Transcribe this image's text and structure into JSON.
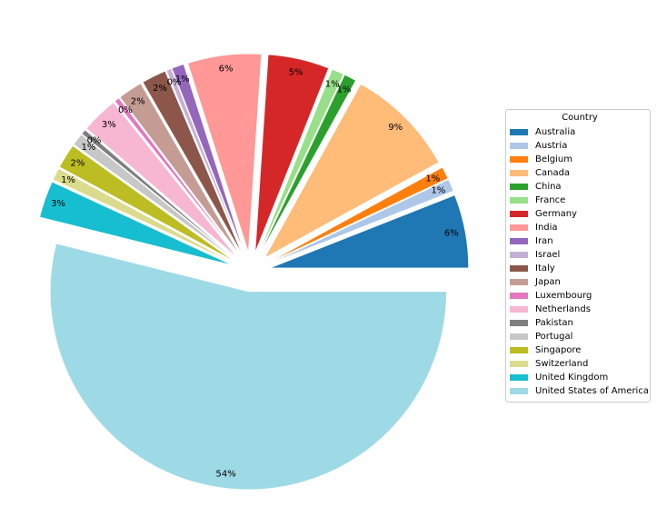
{
  "chart_data": {
    "type": "pie",
    "title": "",
    "legend_title": "Country",
    "legend_position": "right",
    "start_angle_deg": 0,
    "direction": "counterclockwise",
    "exploded": true,
    "slices": [
      {
        "label": "Australia",
        "value": 6,
        "display": "6%",
        "color": "#1f77b4"
      },
      {
        "label": "Austria",
        "value": 1,
        "display": "1%",
        "color": "#aec7e8"
      },
      {
        "label": "Belgium",
        "value": 1,
        "display": "1%",
        "color": "#ff7f0e"
      },
      {
        "label": "Canada",
        "value": 9,
        "display": "9%",
        "color": "#ffbb78"
      },
      {
        "label": "China",
        "value": 1,
        "display": "1%",
        "color": "#2ca02c"
      },
      {
        "label": "France",
        "value": 1,
        "display": "1%",
        "color": "#98df8a"
      },
      {
        "label": "Germany",
        "value": 5,
        "display": "5%",
        "color": "#d62728"
      },
      {
        "label": "India",
        "value": 6,
        "display": "6%",
        "color": "#ff9896"
      },
      {
        "label": "Iran",
        "value": 1,
        "display": "1%",
        "color": "#9467bd"
      },
      {
        "label": "Israel",
        "value": 0.4,
        "display": "0%",
        "color": "#c5b0d5"
      },
      {
        "label": "Italy",
        "value": 2,
        "display": "2%",
        "color": "#8c564b"
      },
      {
        "label": "Japan",
        "value": 2,
        "display": "2%",
        "color": "#c49c94"
      },
      {
        "label": "Luxembourg",
        "value": 0.4,
        "display": "0%",
        "color": "#e377c2"
      },
      {
        "label": "Netherlands",
        "value": 3,
        "display": "3%",
        "color": "#f7b6d2"
      },
      {
        "label": "Pakistan",
        "value": 0.4,
        "display": "0%",
        "color": "#7f7f7f"
      },
      {
        "label": "Portugal",
        "value": 1,
        "display": "1%",
        "color": "#c7c7c7"
      },
      {
        "label": "Singapore",
        "value": 2,
        "display": "2%",
        "color": "#bcbd22"
      },
      {
        "label": "Switzerland",
        "value": 1,
        "display": "1%",
        "color": "#dbdb8d"
      },
      {
        "label": "United Kingdom",
        "value": 3,
        "display": "3%",
        "color": "#17becf"
      },
      {
        "label": "United States of America",
        "value": 54,
        "display": "54%",
        "color": "#9edae5"
      }
    ]
  }
}
